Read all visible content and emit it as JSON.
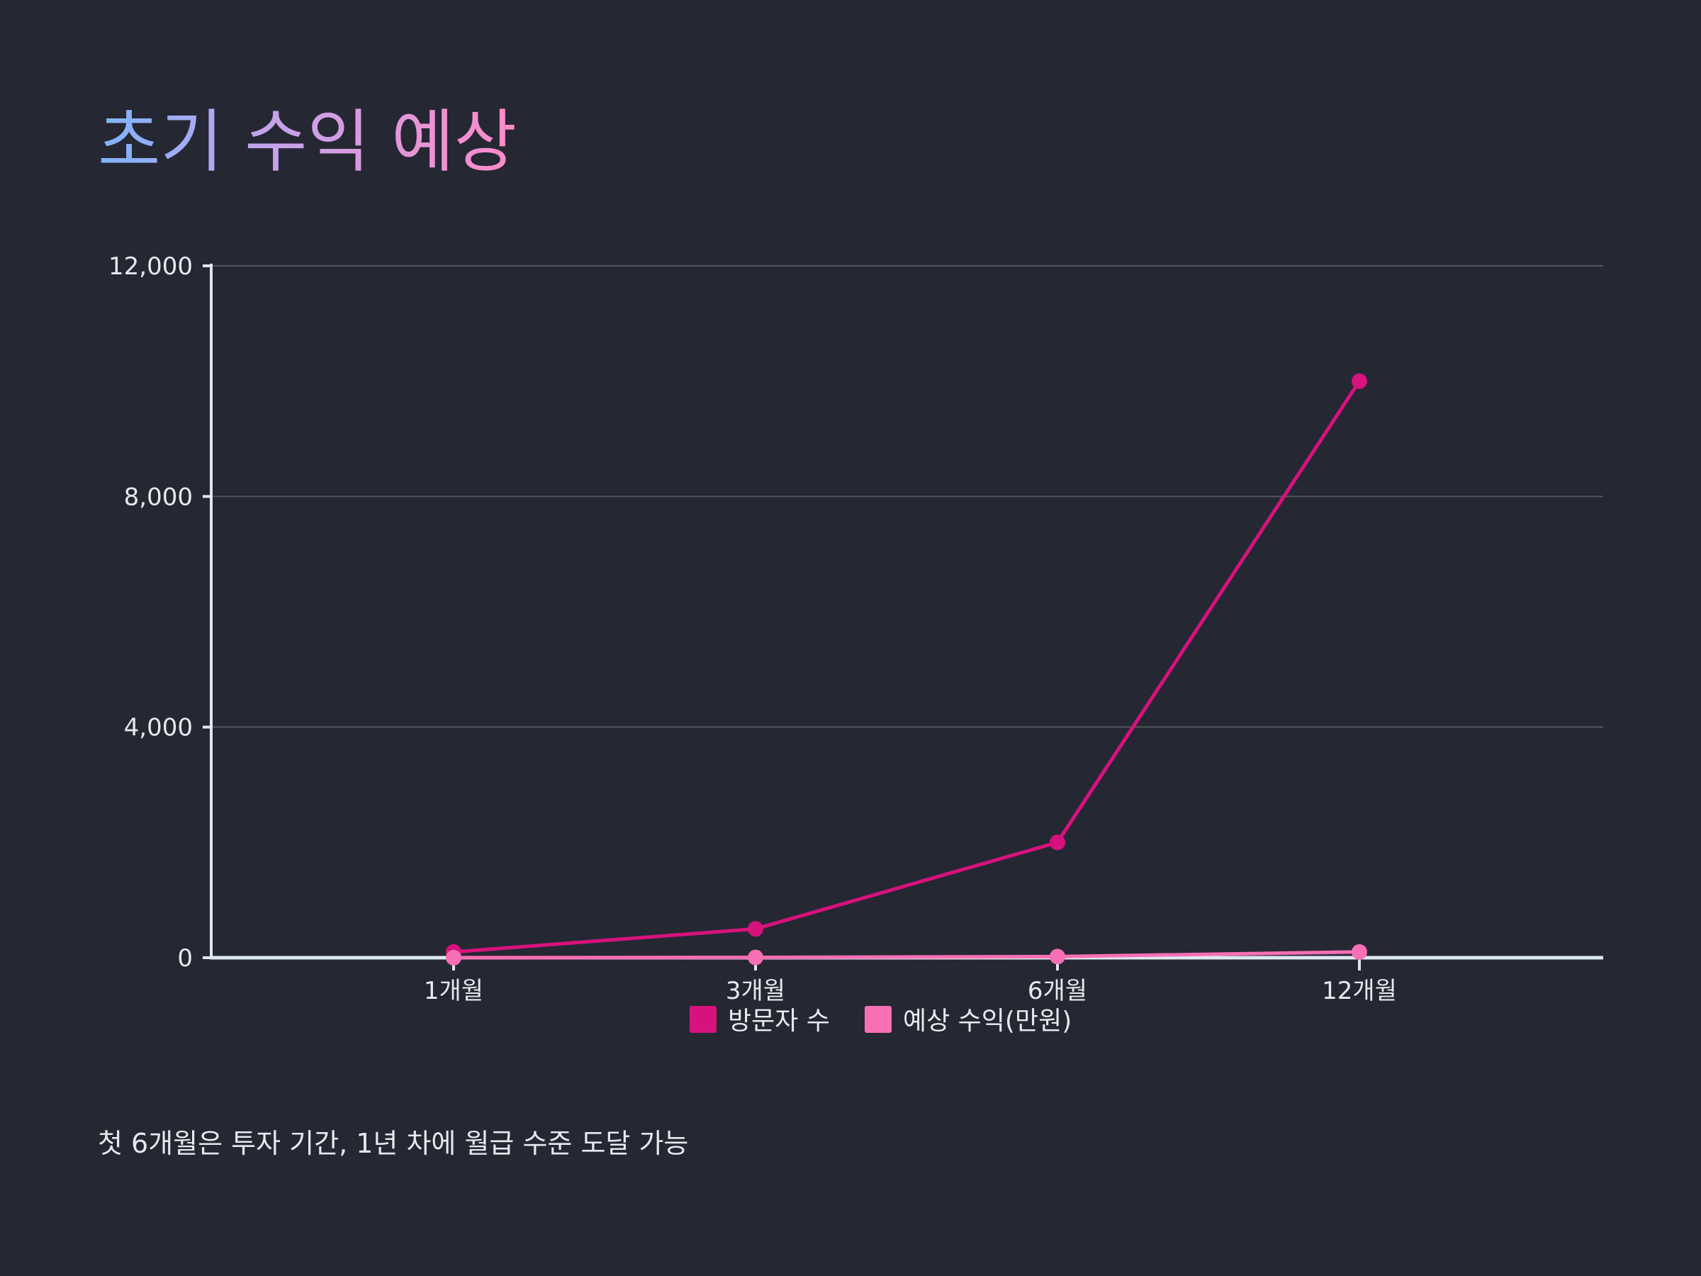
{
  "slide": {
    "title": "초기 수익 예상",
    "footnote": "첫 6개월은 투자 기간, 1년 차에 월급 수준 도달 가능"
  },
  "chart_data": {
    "type": "line",
    "categories": [
      "1개월",
      "3개월",
      "6개월",
      "12개월"
    ],
    "series": [
      {
        "name": "방문자 수",
        "values": [
          100,
          500,
          2000,
          10000
        ],
        "color": "#d8127d"
      },
      {
        "name": "예상 수익(만원)",
        "values": [
          1,
          5,
          20,
          100
        ],
        "color": "#f86fb5"
      }
    ],
    "ylim": [
      0,
      12000
    ],
    "yticks": [
      0,
      4000,
      8000,
      12000
    ],
    "ytick_labels": [
      "0",
      "4,000",
      "8,000",
      "12,000"
    ],
    "grid": true,
    "legend": "bottom-center",
    "colors": {
      "background": "#252733",
      "axis": "#dfe8f2",
      "grid": "#54565f",
      "text": "#e8e8ee"
    }
  }
}
